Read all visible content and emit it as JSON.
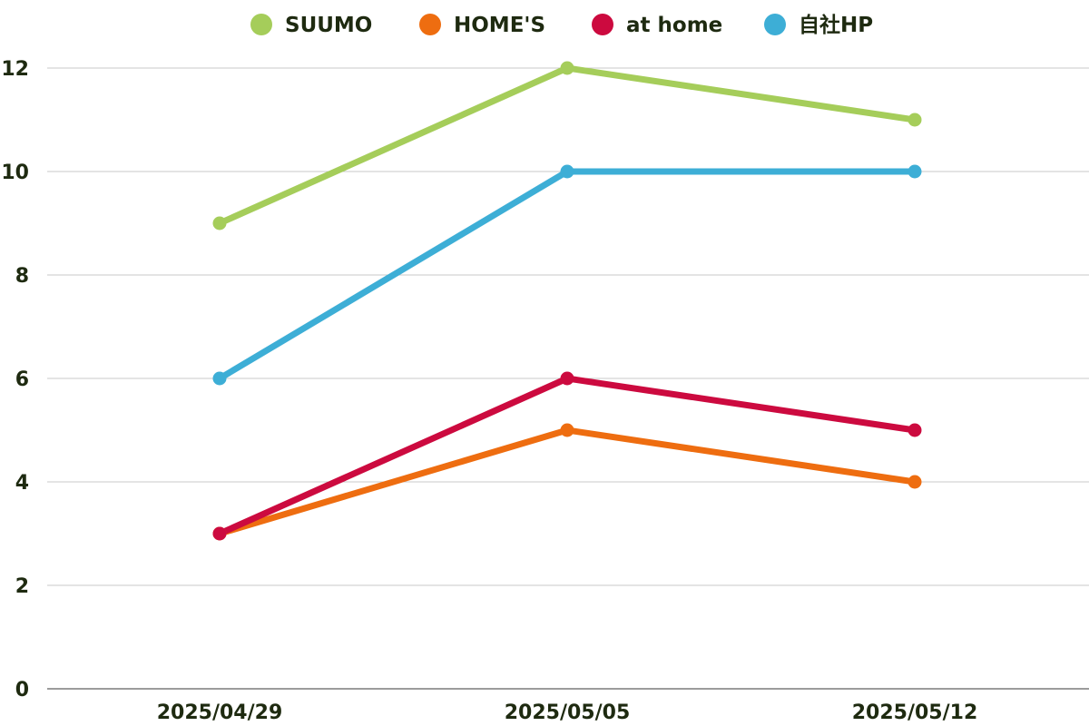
{
  "chart_data": {
    "type": "line",
    "title": "",
    "xlabel": "",
    "ylabel": "",
    "categories": [
      "2025/04/29",
      "2025/05/05",
      "2025/05/12"
    ],
    "ylim": [
      0,
      12
    ],
    "yticks": [
      0,
      2,
      4,
      6,
      8,
      10,
      12
    ],
    "grid": true,
    "legend_position": "top-center",
    "series": [
      {
        "name": "SUUMO",
        "color": "#a5cd5a",
        "values": [
          9,
          12,
          11
        ]
      },
      {
        "name": "HOME'S",
        "color": "#ee6d10",
        "values": [
          3,
          5,
          4
        ]
      },
      {
        "name": "at home",
        "color": "#cc0a3f",
        "values": [
          3,
          6,
          5
        ]
      },
      {
        "name": "自社HP",
        "color": "#3daed6",
        "values": [
          6,
          10,
          10
        ]
      }
    ],
    "colors": {
      "grid": "#c8c8c8",
      "axis": "#7a7a7a",
      "text": "#1e2a10"
    }
  }
}
